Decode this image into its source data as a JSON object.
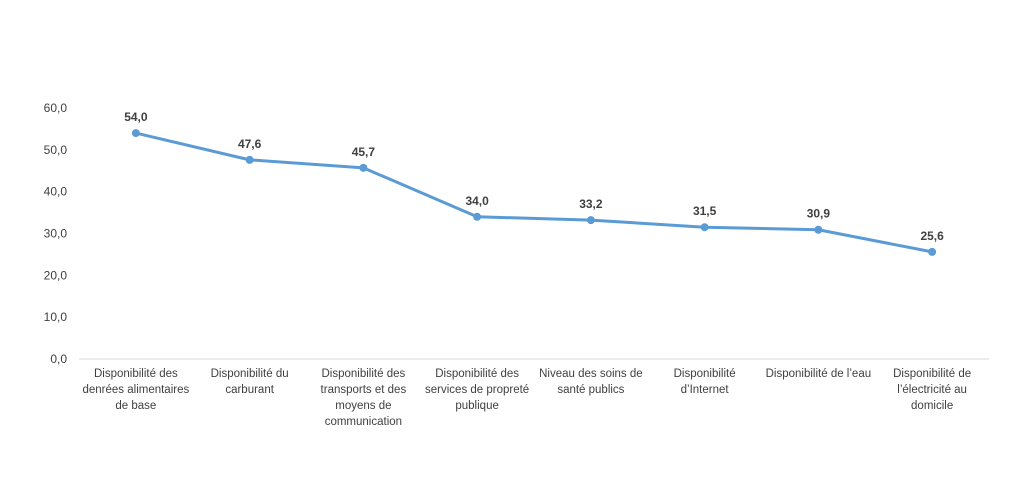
{
  "chart_data": {
    "type": "line",
    "title": "",
    "xlabel": "",
    "ylabel": "",
    "ylim": [
      0,
      60
    ],
    "yticks": [
      "0,0",
      "10,0",
      "20,0",
      "30,0",
      "40,0",
      "50,0",
      "60,0"
    ],
    "grid": false,
    "legend": "none",
    "line_color": "#5B9BD5",
    "categories": [
      [
        "Disponibilité des",
        "denrées alimentaires",
        "de base"
      ],
      [
        "Disponibilité du",
        "carburant"
      ],
      [
        "Disponibilité des",
        "transports et des",
        "moyens de",
        "communication"
      ],
      [
        "Disponibilité des",
        "services de propreté",
        "publique"
      ],
      [
        "Niveau des soins de",
        "santé publics"
      ],
      [
        "Disponibilité",
        "d’Internet"
      ],
      [
        "Disponibilité  de l’eau"
      ],
      [
        "Disponibilité  de",
        "l’électricité au",
        "domicile"
      ]
    ],
    "values": [
      54.0,
      47.6,
      45.7,
      34.0,
      33.2,
      31.5,
      30.9,
      25.6
    ],
    "data_labels": [
      "54,0",
      "47,6",
      "45,7",
      "34,0",
      "33,2",
      "31,5",
      "30,9",
      "25,6"
    ]
  }
}
